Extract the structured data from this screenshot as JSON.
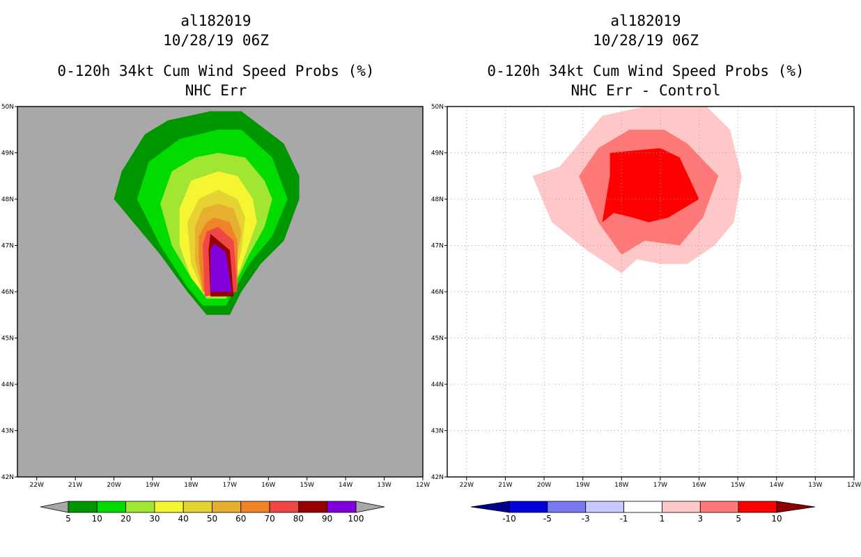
{
  "chart_data": [
    {
      "type": "heatmap",
      "title_lines": [
        "al182019",
        "10/28/19 06Z",
        "0-120h 34kt Cum Wind Speed Probs (%)",
        "NHC Err"
      ],
      "x_ticks": [
        "22W",
        "21W",
        "20W",
        "19W",
        "18W",
        "17W",
        "16W",
        "15W",
        "14W",
        "13W",
        "12W"
      ],
      "y_ticks": [
        "42N",
        "43N",
        "44N",
        "45N",
        "46N",
        "47N",
        "48N",
        "49N",
        "50N"
      ],
      "xlim": [
        -22.5,
        -12
      ],
      "ylim": [
        42,
        50
      ],
      "grid": false,
      "background": "#a8a8a8",
      "colorbar": {
        "labels": [
          "5",
          "10",
          "20",
          "30",
          "40",
          "50",
          "60",
          "70",
          "80",
          "90",
          "100"
        ],
        "colors": [
          "#009600",
          "#00dc00",
          "#a0e632",
          "#f5f532",
          "#e6d232",
          "#e6af2d",
          "#f08228",
          "#f04646",
          "#960000",
          "#8200dc"
        ],
        "end_color": "#a8a8a8"
      },
      "contours": [
        {
          "level": 5,
          "color": "#009600",
          "polygon": [
            [
              -17.5,
              49.9
            ],
            [
              -16.7,
              49.9
            ],
            [
              -15.6,
              49.2
            ],
            [
              -15.2,
              48.5
            ],
            [
              -15.2,
              48.0
            ],
            [
              -15.6,
              47.1
            ],
            [
              -16.2,
              46.6
            ],
            [
              -16.7,
              46.0
            ],
            [
              -17.0,
              45.5
            ],
            [
              -17.6,
              45.5
            ],
            [
              -18.1,
              46.0
            ],
            [
              -18.8,
              46.8
            ],
            [
              -19.5,
              47.5
            ],
            [
              -20.0,
              48.0
            ],
            [
              -19.8,
              48.6
            ],
            [
              -19.2,
              49.4
            ],
            [
              -18.6,
              49.7
            ]
          ]
        },
        {
          "level": 10,
          "color": "#00dc00",
          "polygon": [
            [
              -17.3,
              49.5
            ],
            [
              -16.7,
              49.5
            ],
            [
              -15.9,
              48.9
            ],
            [
              -15.5,
              48.0
            ],
            [
              -15.9,
              47.2
            ],
            [
              -16.5,
              46.6
            ],
            [
              -16.9,
              46.0
            ],
            [
              -17.1,
              45.7
            ],
            [
              -17.7,
              45.7
            ],
            [
              -18.1,
              46.1
            ],
            [
              -18.8,
              47.0
            ],
            [
              -19.4,
              48.0
            ],
            [
              -19.1,
              48.8
            ],
            [
              -18.3,
              49.3
            ]
          ]
        },
        {
          "level": 20,
          "color": "#a0e632",
          "polygon": [
            [
              -17.3,
              49.0
            ],
            [
              -16.6,
              48.9
            ],
            [
              -16.1,
              48.4
            ],
            [
              -15.9,
              48.0
            ],
            [
              -16.1,
              47.4
            ],
            [
              -16.5,
              46.8
            ],
            [
              -16.9,
              46.1
            ],
            [
              -17.1,
              45.85
            ],
            [
              -17.6,
              45.85
            ],
            [
              -18.0,
              46.3
            ],
            [
              -18.5,
              47.0
            ],
            [
              -18.8,
              47.9
            ],
            [
              -18.5,
              48.6
            ],
            [
              -17.9,
              48.9
            ]
          ]
        },
        {
          "level": 30,
          "color": "#f5f532",
          "polygon": [
            [
              -17.3,
              48.6
            ],
            [
              -16.8,
              48.5
            ],
            [
              -16.4,
              48.0
            ],
            [
              -16.3,
              47.5
            ],
            [
              -16.6,
              46.8
            ],
            [
              -16.9,
              46.1
            ],
            [
              -17.1,
              45.9
            ],
            [
              -17.6,
              45.9
            ],
            [
              -18.0,
              46.3
            ],
            [
              -18.3,
              47.0
            ],
            [
              -18.3,
              47.8
            ],
            [
              -18.0,
              48.4
            ]
          ]
        },
        {
          "level": 40,
          "color": "#e6d232",
          "polygon": [
            [
              -17.3,
              48.2
            ],
            [
              -16.8,
              48.0
            ],
            [
              -16.6,
              47.6
            ],
            [
              -16.7,
              46.9
            ],
            [
              -16.9,
              46.2
            ],
            [
              -17.2,
              45.9
            ],
            [
              -17.7,
              46.0
            ],
            [
              -18.0,
              46.6
            ],
            [
              -18.1,
              47.5
            ],
            [
              -17.8,
              48.0
            ]
          ]
        },
        {
          "level": 50,
          "color": "#e6af2d",
          "polygon": [
            [
              -17.3,
              47.9
            ],
            [
              -16.9,
              47.8
            ],
            [
              -16.7,
              47.3
            ],
            [
              -16.8,
              46.8
            ],
            [
              -16.9,
              46.1
            ],
            [
              -17.7,
              46.0
            ],
            [
              -17.9,
              46.7
            ],
            [
              -17.9,
              47.4
            ],
            [
              -17.7,
              47.8
            ]
          ]
        },
        {
          "level": 60,
          "color": "#f08228",
          "polygon": [
            [
              -17.4,
              47.6
            ],
            [
              -17.0,
              47.5
            ],
            [
              -16.8,
              47.1
            ],
            [
              -16.8,
              46.1
            ],
            [
              -17.7,
              46.0
            ],
            [
              -17.8,
              46.7
            ],
            [
              -17.8,
              47.2
            ],
            [
              -17.6,
              47.5
            ]
          ]
        },
        {
          "level": 70,
          "color": "#f04646",
          "polygon": [
            [
              -17.3,
              47.4
            ],
            [
              -16.9,
              47.1
            ],
            [
              -16.8,
              46.0
            ],
            [
              -17.65,
              45.9
            ],
            [
              -17.7,
              47.0
            ],
            [
              -17.6,
              47.3
            ]
          ]
        },
        {
          "level": 80,
          "color": "#960000",
          "polygon": [
            [
              -17.5,
              47.25
            ],
            [
              -17.0,
              46.9
            ],
            [
              -16.9,
              45.9
            ],
            [
              -17.5,
              45.9
            ],
            [
              -17.55,
              46.9
            ]
          ]
        },
        {
          "level": 90,
          "color": "#8200dc",
          "polygon": [
            [
              -17.4,
              47.05
            ],
            [
              -17.1,
              46.85
            ],
            [
              -16.95,
              46.0
            ],
            [
              -17.5,
              46.0
            ],
            [
              -17.5,
              46.9
            ]
          ]
        }
      ]
    },
    {
      "type": "heatmap",
      "title_lines": [
        "al182019",
        "10/28/19 06Z",
        "0-120h 34kt Cum Wind Speed Probs (%)",
        "NHC Err - Control"
      ],
      "x_ticks": [
        "22W",
        "21W",
        "20W",
        "19W",
        "18W",
        "17W",
        "16W",
        "15W",
        "14W",
        "13W",
        "12W"
      ],
      "y_ticks": [
        "42N",
        "43N",
        "44N",
        "45N",
        "46N",
        "47N",
        "48N",
        "49N",
        "50N"
      ],
      "xlim": [
        -22.5,
        -12
      ],
      "ylim": [
        42,
        50
      ],
      "grid": true,
      "background": "#ffffff",
      "colorbar": {
        "labels": [
          "-10",
          "-5",
          "-3",
          "-1",
          "1",
          "3",
          "5",
          "10"
        ],
        "colors": [
          "#0000dc",
          "#7878f0",
          "#c8c8ff",
          "#ffffff",
          "#ffc8c8",
          "#ff7878",
          "#ff0000"
        ],
        "low_end_color": "#00008c",
        "high_end_color": "#8c0000"
      },
      "contours": [
        {
          "level": 1,
          "color": "#ffc8c8",
          "polygon": [
            [
              -19.0,
              49.3
            ],
            [
              -18.5,
              49.8
            ],
            [
              -17.4,
              50.0
            ],
            [
              -15.8,
              50.0
            ],
            [
              -15.2,
              49.5
            ],
            [
              -14.9,
              48.5
            ],
            [
              -15.1,
              47.5
            ],
            [
              -15.6,
              47.0
            ],
            [
              -16.3,
              46.6
            ],
            [
              -17.0,
              46.6
            ],
            [
              -17.6,
              46.7
            ],
            [
              -18.0,
              46.4
            ],
            [
              -18.9,
              46.9
            ],
            [
              -19.8,
              47.5
            ],
            [
              -20.3,
              48.5
            ],
            [
              -19.6,
              48.7
            ]
          ]
        },
        {
          "level": 3,
          "color": "#ff7878",
          "polygon": [
            [
              -18.6,
              49.1
            ],
            [
              -17.8,
              49.5
            ],
            [
              -16.9,
              49.5
            ],
            [
              -16.3,
              49.2
            ],
            [
              -15.5,
              48.5
            ],
            [
              -15.9,
              47.6
            ],
            [
              -16.5,
              47.0
            ],
            [
              -17.4,
              47.1
            ],
            [
              -18.0,
              46.8
            ],
            [
              -18.6,
              47.5
            ],
            [
              -19.1,
              48.5
            ]
          ]
        },
        {
          "level": 5,
          "color": "#ff0000",
          "polygon": [
            [
              -18.3,
              49.0
            ],
            [
              -17.0,
              49.1
            ],
            [
              -16.5,
              48.9
            ],
            [
              -16.0,
              48.0
            ],
            [
              -16.8,
              47.6
            ],
            [
              -17.3,
              47.5
            ],
            [
              -17.7,
              47.6
            ],
            [
              -18.2,
              47.7
            ],
            [
              -18.5,
              47.5
            ],
            [
              -18.3,
              48.5
            ]
          ]
        }
      ]
    }
  ]
}
